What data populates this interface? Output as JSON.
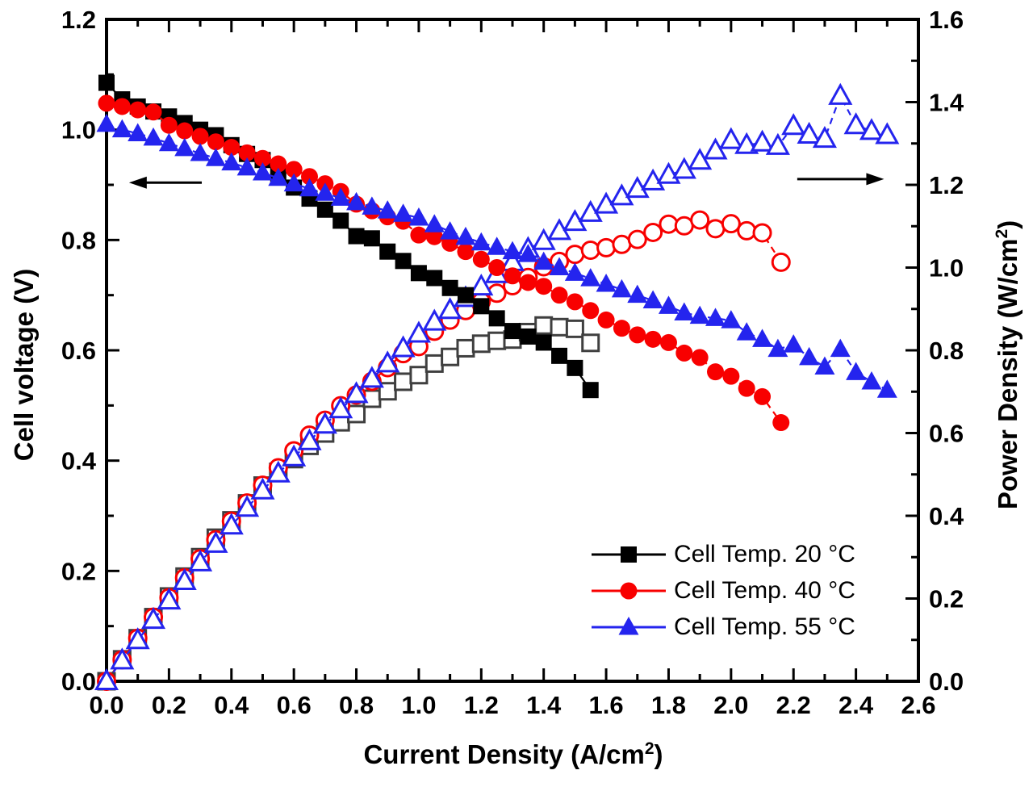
{
  "figure": {
    "background": "#ffffff",
    "frame_color": "#000000"
  },
  "axes": {
    "x": {
      "label_pre": "Current Density (A/cm",
      "label_sup": "2",
      "label_post": ")",
      "min": 0,
      "max": 2.6,
      "major_step": 0.2,
      "minor_step": 0.1,
      "tick_labels": [
        "0.0",
        "0.2",
        "0.4",
        "0.6",
        "0.8",
        "1.0",
        "1.2",
        "1.4",
        "1.6",
        "1.8",
        "2.0",
        "2.2",
        "2.4",
        "2.6"
      ]
    },
    "y_left": {
      "label": "Cell voltage (V)",
      "min": 0,
      "max": 1.2,
      "major_step": 0.2,
      "minor_step": 0.1,
      "tick_labels": [
        "0.0",
        "0.2",
        "0.4",
        "0.6",
        "0.8",
        "1.0",
        "1.2"
      ]
    },
    "y_right": {
      "label_pre": "Power Density (W/cm",
      "label_sup": "2",
      "label_post": ")",
      "min": 0,
      "max": 1.6,
      "major_step": 0.2,
      "minor_step": 0.1,
      "tick_labels": [
        "0.0",
        "0.2",
        "0.4",
        "0.6",
        "0.8",
        "1.0",
        "1.2",
        "1.4",
        "1.6"
      ]
    }
  },
  "chart_data": {
    "type": "line",
    "xlabel": "Current Density (A/cm2)",
    "ylabel_left": "Cell voltage (V)",
    "ylabel_right": "Power Density (W/cm2)",
    "xlim": [
      0,
      2.6
    ],
    "ylim_left": [
      0,
      1.2
    ],
    "ylim_right": [
      0,
      1.6
    ],
    "grid": false,
    "legend_position": "lower right",
    "series": [
      {
        "name": "Cell voltage, Cell Temp. 20 °C",
        "temperature": "20 °C",
        "axis": "left",
        "marker": "square",
        "fill": "filled",
        "color": "#000000",
        "line_style": "solid",
        "x": [
          0,
          0.05,
          0.1,
          0.15,
          0.2,
          0.25,
          0.3,
          0.35,
          0.4,
          0.45,
          0.5,
          0.55,
          0.6,
          0.65,
          0.7,
          0.75,
          0.8,
          0.85,
          0.9,
          0.95,
          1.0,
          1.05,
          1.1,
          1.15,
          1.2,
          1.25,
          1.3,
          1.35,
          1.4,
          1.45,
          1.5,
          1.55
        ],
        "y": [
          1.085,
          1.055,
          1.042,
          1.033,
          1.024,
          1.012,
          1.0,
          0.99,
          0.972,
          0.956,
          0.945,
          0.92,
          0.895,
          0.875,
          0.855,
          0.835,
          0.807,
          0.803,
          0.779,
          0.762,
          0.74,
          0.731,
          0.713,
          0.7,
          0.68,
          0.658,
          0.635,
          0.625,
          0.614,
          0.59,
          0.568,
          0.528
        ]
      },
      {
        "name": "Power density, Cell Temp. 20 °C",
        "temperature": "20 °C",
        "axis": "right",
        "marker": "square",
        "fill": "open",
        "color": "#3f3f3f",
        "line_style": "solid",
        "x": [
          0,
          0.05,
          0.1,
          0.15,
          0.2,
          0.25,
          0.3,
          0.35,
          0.4,
          0.45,
          0.5,
          0.55,
          0.6,
          0.65,
          0.7,
          0.75,
          0.8,
          0.85,
          0.9,
          0.95,
          1.0,
          1.05,
          1.1,
          1.15,
          1.2,
          1.25,
          1.3,
          1.35,
          1.4,
          1.45,
          1.5,
          1.55
        ],
        "y": [
          0,
          0.053,
          0.104,
          0.155,
          0.205,
          0.253,
          0.3,
          0.347,
          0.389,
          0.43,
          0.473,
          0.506,
          0.537,
          0.569,
          0.599,
          0.626,
          0.646,
          0.683,
          0.701,
          0.724,
          0.74,
          0.768,
          0.784,
          0.805,
          0.816,
          0.823,
          0.826,
          0.844,
          0.86,
          0.856,
          0.852,
          0.818
        ]
      },
      {
        "name": "Cell voltage, Cell Temp. 40 °C",
        "temperature": "40 °C",
        "axis": "left",
        "marker": "circle",
        "fill": "filled",
        "color": "#f80000",
        "line_style": "dashed",
        "x": [
          0,
          0.05,
          0.1,
          0.15,
          0.2,
          0.25,
          0.3,
          0.35,
          0.4,
          0.45,
          0.5,
          0.55,
          0.6,
          0.65,
          0.7,
          0.75,
          0.8,
          0.85,
          0.9,
          0.95,
          1.0,
          1.05,
          1.1,
          1.15,
          1.2,
          1.25,
          1.3,
          1.35,
          1.4,
          1.45,
          1.5,
          1.55,
          1.6,
          1.65,
          1.7,
          1.75,
          1.8,
          1.85,
          1.9,
          1.95,
          2.0,
          2.05,
          2.1,
          2.16
        ],
        "y": [
          1.048,
          1.042,
          1.036,
          1.032,
          1.008,
          0.998,
          0.988,
          0.978,
          0.968,
          0.958,
          0.948,
          0.938,
          0.928,
          0.915,
          0.902,
          0.888,
          0.865,
          0.853,
          0.842,
          0.834,
          0.809,
          0.806,
          0.794,
          0.779,
          0.765,
          0.75,
          0.735,
          0.723,
          0.716,
          0.7,
          0.688,
          0.672,
          0.655,
          0.64,
          0.628,
          0.62,
          0.614,
          0.595,
          0.587,
          0.561,
          0.553,
          0.531,
          0.516,
          0.469
        ]
      },
      {
        "name": "Power density, Cell Temp. 40 °C",
        "temperature": "40 °C",
        "axis": "right",
        "marker": "circle",
        "fill": "open",
        "color": "#f80000",
        "line_style": "dashed",
        "x": [
          0,
          0.05,
          0.1,
          0.15,
          0.2,
          0.25,
          0.3,
          0.35,
          0.4,
          0.45,
          0.5,
          0.55,
          0.6,
          0.65,
          0.7,
          0.75,
          0.8,
          0.85,
          0.9,
          0.95,
          1.0,
          1.05,
          1.1,
          1.15,
          1.2,
          1.25,
          1.3,
          1.35,
          1.4,
          1.45,
          1.5,
          1.55,
          1.6,
          1.65,
          1.7,
          1.75,
          1.8,
          1.85,
          1.9,
          1.95,
          2.0,
          2.05,
          2.1,
          2.16
        ],
        "y": [
          0,
          0.052,
          0.104,
          0.155,
          0.202,
          0.25,
          0.296,
          0.342,
          0.387,
          0.431,
          0.474,
          0.516,
          0.557,
          0.595,
          0.631,
          0.666,
          0.692,
          0.725,
          0.758,
          0.792,
          0.809,
          0.846,
          0.873,
          0.896,
          0.918,
          0.938,
          0.956,
          0.976,
          1.002,
          1.015,
          1.032,
          1.042,
          1.048,
          1.056,
          1.068,
          1.085,
          1.105,
          1.101,
          1.115,
          1.094,
          1.106,
          1.089,
          1.084,
          1.013
        ]
      },
      {
        "name": "Cell voltage, Cell Temp. 55 °C",
        "temperature": "55 °C",
        "axis": "left",
        "marker": "triangle",
        "fill": "filled",
        "color": "#2424ee",
        "line_style": "dashed",
        "x": [
          0,
          0.05,
          0.1,
          0.15,
          0.2,
          0.25,
          0.3,
          0.35,
          0.4,
          0.45,
          0.5,
          0.55,
          0.6,
          0.65,
          0.7,
          0.75,
          0.8,
          0.85,
          0.9,
          0.95,
          1.0,
          1.05,
          1.1,
          1.15,
          1.2,
          1.25,
          1.3,
          1.35,
          1.4,
          1.45,
          1.5,
          1.55,
          1.6,
          1.65,
          1.7,
          1.75,
          1.8,
          1.85,
          1.9,
          1.95,
          2.0,
          2.05,
          2.1,
          2.15,
          2.2,
          2.25,
          2.3,
          2.35,
          2.4,
          2.45,
          2.5
        ],
        "y": [
          1.01,
          1.0,
          0.993,
          0.985,
          0.975,
          0.966,
          0.957,
          0.948,
          0.94,
          0.931,
          0.922,
          0.912,
          0.902,
          0.893,
          0.885,
          0.876,
          0.868,
          0.86,
          0.853,
          0.847,
          0.84,
          0.828,
          0.815,
          0.805,
          0.795,
          0.787,
          0.779,
          0.774,
          0.76,
          0.75,
          0.74,
          0.73,
          0.72,
          0.71,
          0.7,
          0.69,
          0.68,
          0.668,
          0.662,
          0.658,
          0.654,
          0.632,
          0.62,
          0.602,
          0.61,
          0.587,
          0.57,
          0.602,
          0.56,
          0.543,
          0.528
        ]
      },
      {
        "name": "Power density, Cell Temp. 55 °C",
        "temperature": "55 °C",
        "axis": "right",
        "marker": "triangle",
        "fill": "open",
        "color": "#2424ee",
        "line_style": "dashed",
        "x": [
          0,
          0.05,
          0.1,
          0.15,
          0.2,
          0.25,
          0.3,
          0.35,
          0.4,
          0.45,
          0.5,
          0.55,
          0.6,
          0.65,
          0.7,
          0.75,
          0.8,
          0.85,
          0.9,
          0.95,
          1.0,
          1.05,
          1.1,
          1.15,
          1.2,
          1.25,
          1.3,
          1.35,
          1.4,
          1.45,
          1.5,
          1.55,
          1.6,
          1.65,
          1.7,
          1.75,
          1.8,
          1.85,
          1.9,
          1.95,
          2.0,
          2.05,
          2.1,
          2.15,
          2.2,
          2.25,
          2.3,
          2.35,
          2.4,
          2.45,
          2.5
        ],
        "y": [
          0,
          0.05,
          0.099,
          0.148,
          0.195,
          0.242,
          0.287,
          0.332,
          0.376,
          0.419,
          0.461,
          0.502,
          0.541,
          0.58,
          0.62,
          0.657,
          0.694,
          0.731,
          0.768,
          0.805,
          0.84,
          0.869,
          0.897,
          0.926,
          0.954,
          0.984,
          1.013,
          1.045,
          1.064,
          1.088,
          1.11,
          1.132,
          1.152,
          1.172,
          1.19,
          1.208,
          1.224,
          1.236,
          1.258,
          1.283,
          1.308,
          1.296,
          1.302,
          1.294,
          1.342,
          1.321,
          1.311,
          1.415,
          1.344,
          1.33,
          1.32
        ]
      }
    ]
  },
  "legend": {
    "items": [
      {
        "label": "Cell Temp. 20 °C",
        "marker": "square",
        "color": "#000000",
        "line_color": "#000000"
      },
      {
        "label": "Cell Temp. 40 °C",
        "marker": "circle",
        "color": "#f80000",
        "line_color": "#f80000"
      },
      {
        "label": "Cell Temp. 55 °C",
        "marker": "triangle",
        "color": "#2424ee",
        "line_color": "#2424ee"
      }
    ]
  },
  "annotations": {
    "arrows": [
      {
        "name": "left-axis-arrow",
        "direction": "left",
        "axis": "left",
        "y_value": 0.904,
        "x_tail": 0.305,
        "x_head": 0.072
      },
      {
        "name": "right-axis-arrow",
        "direction": "right",
        "axis": "right",
        "y_value": 1.214,
        "x_tail": 2.212,
        "x_head": 2.49
      }
    ]
  }
}
